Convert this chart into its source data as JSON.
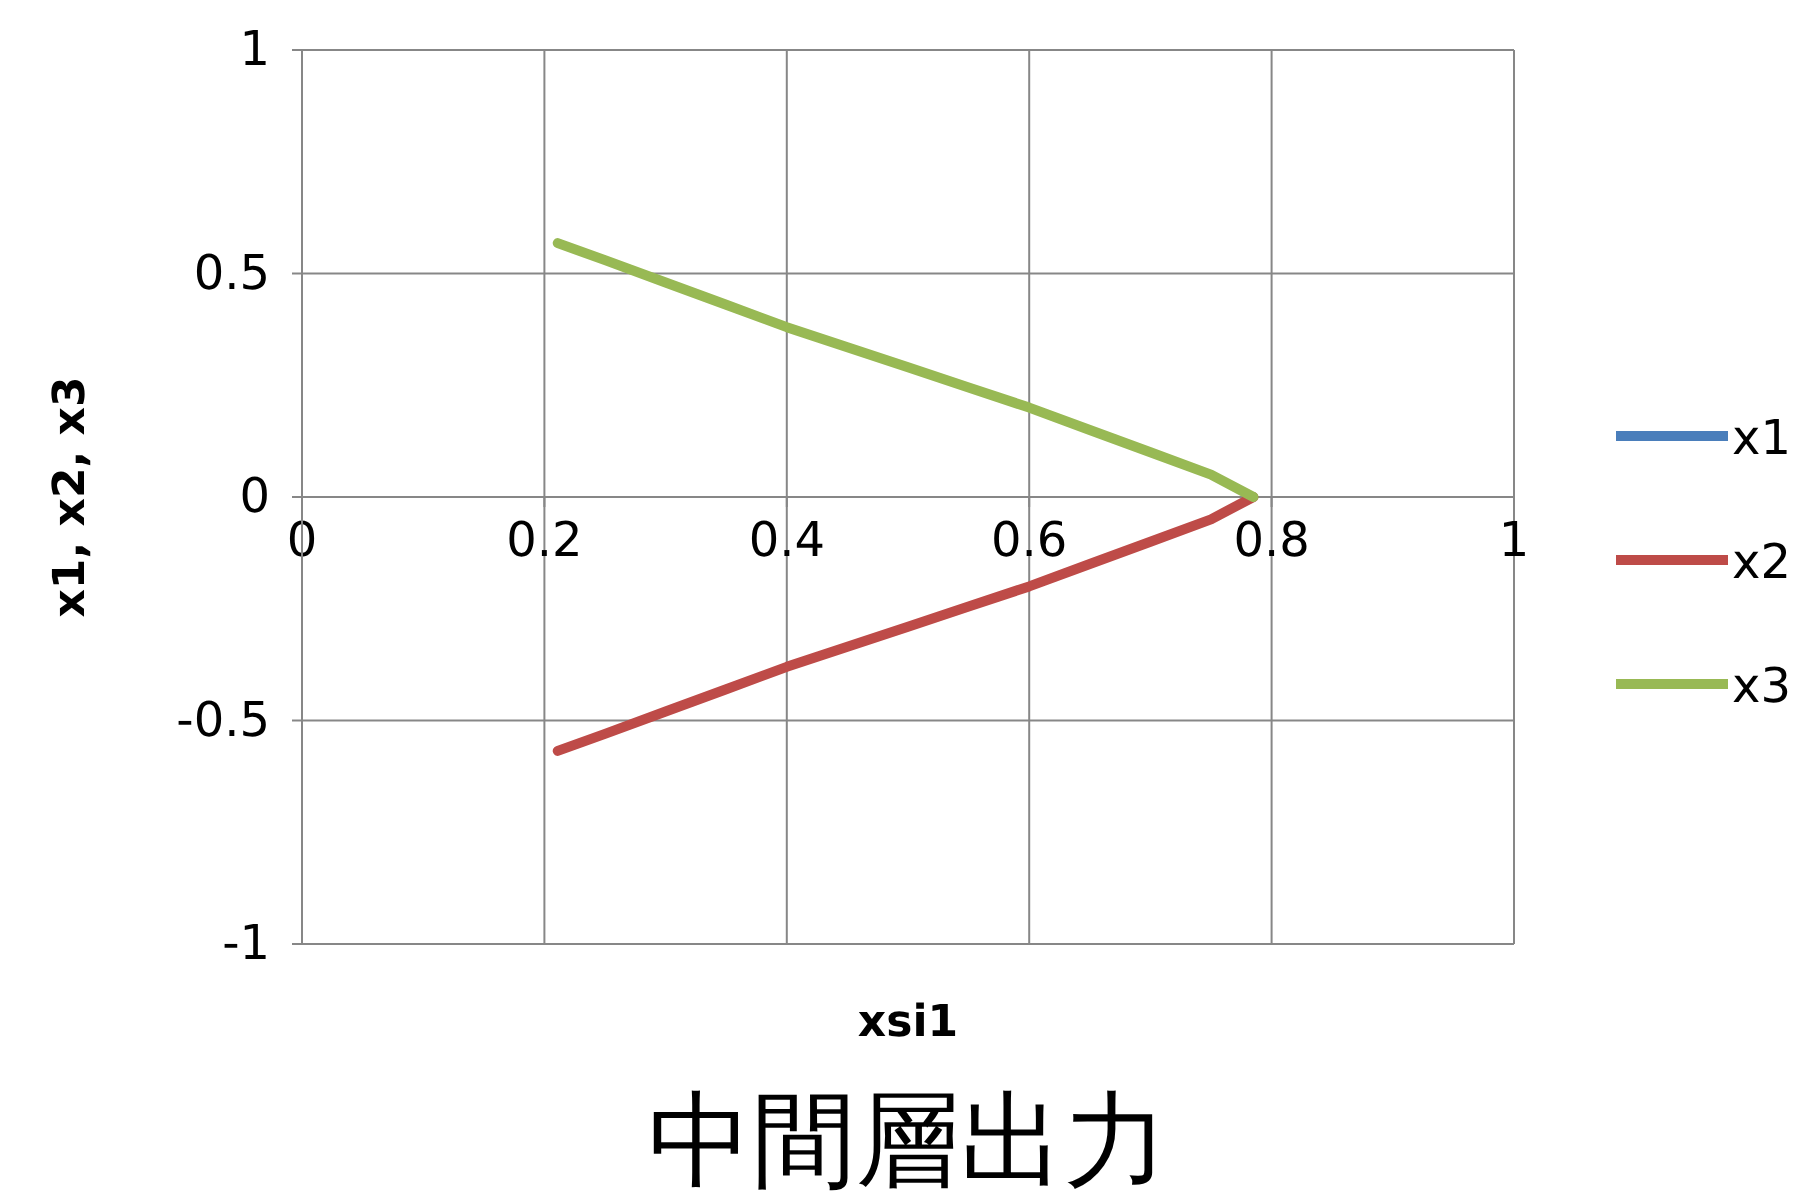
{
  "chart_data": {
    "type": "line",
    "title": "中間層出力",
    "xlabel": "xsi1",
    "ylabel": "x1, x2, x3",
    "x": [
      0.211,
      0.25,
      0.3,
      0.35,
      0.4,
      0.45,
      0.5,
      0.55,
      0.6,
      0.65,
      0.7,
      0.75,
      0.785
    ],
    "xlim": [
      0,
      1
    ],
    "xticks": [
      0,
      0.2,
      0.4,
      0.6,
      0.8,
      1
    ],
    "ylim": [
      -1,
      1
    ],
    "yticks": [
      -1,
      -0.5,
      0,
      0.5,
      1
    ],
    "grid": true,
    "legend": "right",
    "marker": "none",
    "line_style": "solid",
    "series": [
      {
        "name": "x1",
        "color": "#4a7ebb",
        "values": [
          null,
          null,
          null,
          null,
          null,
          null,
          null,
          null,
          null,
          null,
          null,
          null,
          null
        ]
      },
      {
        "name": "x2",
        "color": "#be4b48",
        "values": [
          -0.568,
          -0.53,
          -0.48,
          -0.43,
          -0.38,
          -0.335,
          -0.29,
          -0.245,
          -0.2,
          -0.15,
          -0.1,
          -0.05,
          0
        ]
      },
      {
        "name": "x3",
        "color": "#98b954",
        "values": [
          0.568,
          0.53,
          0.48,
          0.43,
          0.38,
          0.335,
          0.29,
          0.245,
          0.2,
          0.15,
          0.1,
          0.05,
          0
        ]
      }
    ]
  }
}
